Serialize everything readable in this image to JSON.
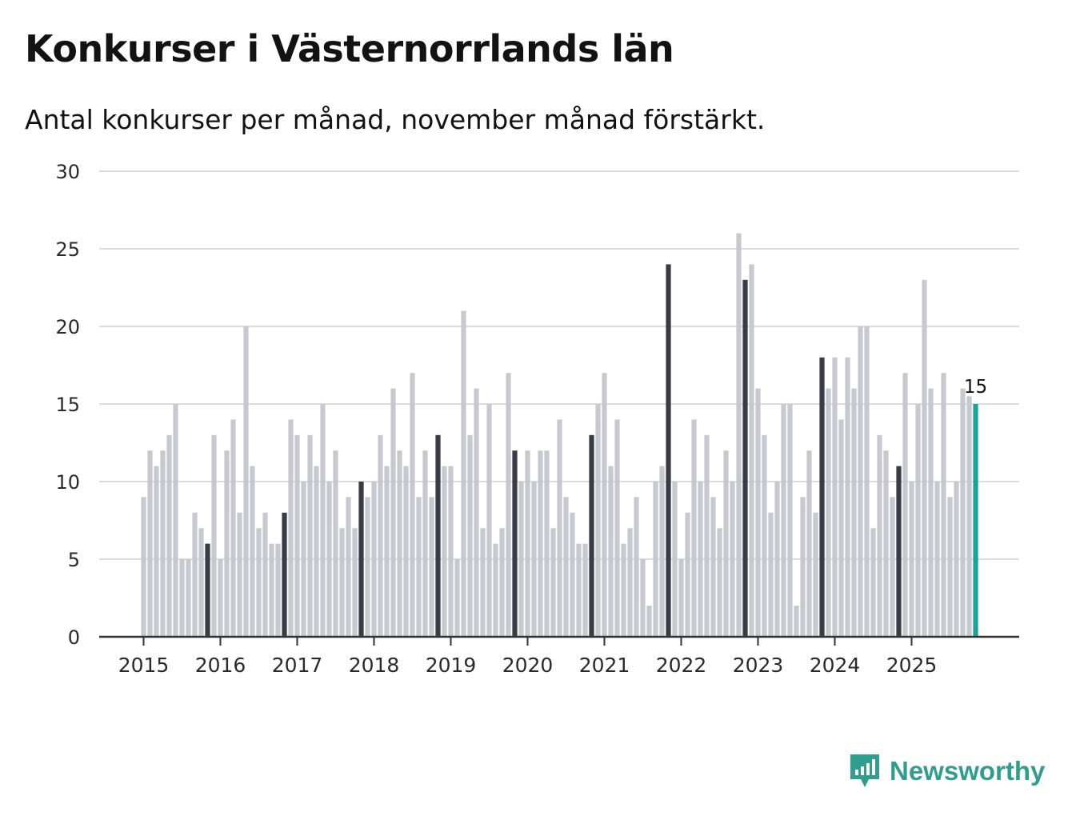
{
  "chart_data": {
    "type": "bar",
    "title": "Konkurser i Västernorrlands län",
    "subtitle": "Antal konkurser per månad, november månad förstärkt.",
    "xlabel": "",
    "ylabel": "",
    "ylim": [
      0,
      30
    ],
    "yticks": [
      "0",
      "5",
      "10",
      "15",
      "20",
      "25",
      "30"
    ],
    "xticks": [
      "2015",
      "2016",
      "2017",
      "2018",
      "2019",
      "2020",
      "2021",
      "2022",
      "2023",
      "2024",
      "2025"
    ],
    "start": "2015-01",
    "highlight_month": "november",
    "values": [
      9,
      12,
      11,
      12,
      13,
      15,
      5,
      5,
      8,
      7,
      6,
      13,
      5,
      12,
      14,
      8,
      20,
      11,
      7,
      8,
      6,
      6,
      8,
      14,
      13,
      10,
      13,
      11,
      15,
      10,
      12,
      7,
      9,
      7,
      10,
      9,
      10,
      13,
      11,
      16,
      12,
      11,
      17,
      9,
      12,
      9,
      13,
      11,
      11,
      5,
      21,
      13,
      16,
      7,
      15,
      6,
      7,
      17,
      12,
      10,
      12,
      10,
      12,
      12,
      7,
      14,
      9,
      8,
      6,
      6,
      13,
      15,
      17,
      11,
      14,
      6,
      7,
      9,
      5,
      2,
      10,
      11,
      24,
      10,
      5,
      8,
      14,
      10,
      13,
      9,
      7,
      12,
      10,
      26,
      23,
      24,
      16,
      13,
      8,
      10,
      15,
      15,
      2,
      9,
      12,
      8,
      18,
      16,
      18,
      14,
      18,
      16,
      20,
      20,
      7,
      13,
      12,
      9,
      11,
      17,
      10,
      15,
      23,
      16,
      10,
      17,
      9,
      10,
      16,
      15.5,
      15
    ],
    "last_value_label": "15",
    "colors": {
      "normal": "#c7c7d0",
      "november": "#3b3b48",
      "latest": "#17a398",
      "grid": "#dcdcdc",
      "axis": "#333333"
    }
  },
  "brand": {
    "name": "Newsworthy",
    "icon": "newsworthy-logo-icon",
    "color": "#2f9e8f"
  }
}
